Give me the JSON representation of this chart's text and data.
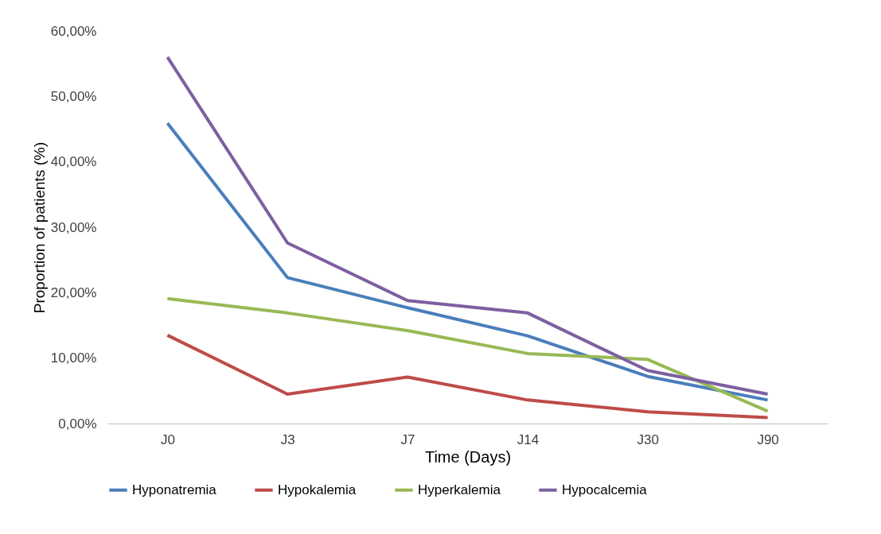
{
  "chart_data": {
    "type": "line",
    "xlabel": "Time (Days)",
    "ylabel": "Proportion of patients (%)",
    "categories": [
      "J0",
      "J3",
      "J7",
      "J14",
      "J30",
      "J90"
    ],
    "series": [
      {
        "name": "Hyponatremia",
        "color": "#4a7ebb",
        "values": [
          45.9,
          22.3,
          17.7,
          13.4,
          7.2,
          3.6
        ]
      },
      {
        "name": "Hypokalemia",
        "color": "#be4b48",
        "values": [
          13.5,
          4.5,
          7.1,
          3.6,
          1.8,
          0.9
        ]
      },
      {
        "name": "Hyperkalemia",
        "color": "#98b954",
        "values": [
          19.1,
          16.9,
          14.2,
          10.7,
          9.8,
          1.9
        ]
      },
      {
        "name": "Hypocalcemia",
        "color": "#7d60a0",
        "values": [
          56.0,
          27.6,
          18.8,
          16.9,
          8.1,
          4.5
        ]
      }
    ],
    "ylim": [
      0,
      60
    ],
    "yticks": [
      {
        "value": 0,
        "label": "0,00%"
      },
      {
        "value": 10,
        "label": "10,00%"
      },
      {
        "value": 20,
        "label": "20,00%"
      },
      {
        "value": 30,
        "label": "30,00%"
      },
      {
        "value": 40,
        "label": "40,00%"
      },
      {
        "value": 50,
        "label": "50,00%"
      },
      {
        "value": 60,
        "label": "60,00%"
      }
    ],
    "legend": "bottom",
    "line_style": "solid",
    "marker": "none",
    "grid": false
  }
}
